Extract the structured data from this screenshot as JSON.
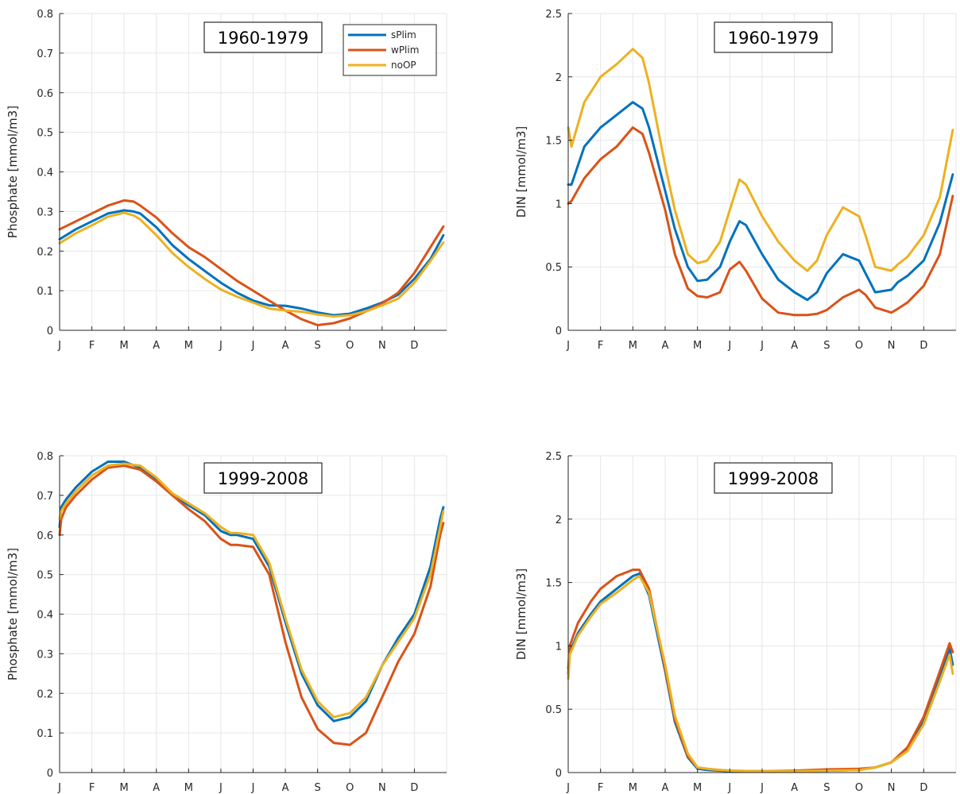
{
  "colors": {
    "sPlim": "#0072BD",
    "wPlim": "#D95319",
    "noOP": "#EDB120",
    "grid": "#e6e6e6",
    "axis": "#262626"
  },
  "legend": {
    "entries": [
      "sPlim",
      "wPlim",
      "noOP"
    ],
    "placement": "top-right of top-left panel"
  },
  "chart_data": [
    {
      "type": "line",
      "title": "1960-1979",
      "ylabel": "Phosphate [mmol/m3]",
      "ylim": [
        0,
        0.8
      ],
      "yticks": [
        "0",
        "0.1",
        "0.2",
        "0.3",
        "0.4",
        "0.5",
        "0.6",
        "0.7",
        "0.8"
      ],
      "xtick_labels": [
        "J",
        "F",
        "M",
        "A",
        "M",
        "J",
        "J",
        "A",
        "S",
        "O",
        "N",
        "D"
      ],
      "x_domain_months": [
        0,
        12
      ],
      "grid": true,
      "series": [
        {
          "name": "sPlim",
          "x": [
            0,
            0.5,
            1,
            1.5,
            2,
            2.3,
            2.5,
            3,
            3.5,
            4,
            4.5,
            5,
            5.5,
            6,
            6.5,
            7,
            7.5,
            8,
            8.5,
            9,
            9.5,
            10,
            10.5,
            11,
            11.5,
            11.9
          ],
          "values": [
            0.23,
            0.255,
            0.275,
            0.295,
            0.303,
            0.3,
            0.295,
            0.26,
            0.215,
            0.18,
            0.15,
            0.12,
            0.095,
            0.075,
            0.063,
            0.062,
            0.055,
            0.045,
            0.038,
            0.042,
            0.055,
            0.07,
            0.09,
            0.13,
            0.18,
            0.24
          ]
        },
        {
          "name": "wPlim",
          "x": [
            0,
            0.5,
            1,
            1.5,
            2,
            2.3,
            2.5,
            3,
            3.5,
            4,
            4.5,
            5,
            5.5,
            6,
            6.5,
            7,
            7.5,
            8,
            8.5,
            9,
            9.5,
            10,
            10.5,
            11,
            11.5,
            11.9
          ],
          "values": [
            0.255,
            0.275,
            0.295,
            0.315,
            0.328,
            0.325,
            0.315,
            0.285,
            0.245,
            0.21,
            0.185,
            0.155,
            0.125,
            0.1,
            0.075,
            0.05,
            0.028,
            0.013,
            0.018,
            0.03,
            0.048,
            0.068,
            0.095,
            0.145,
            0.21,
            0.262
          ]
        },
        {
          "name": "noOP",
          "x": [
            0,
            0.5,
            1,
            1.5,
            2,
            2.3,
            2.5,
            3,
            3.5,
            4,
            4.5,
            5,
            5.5,
            6,
            6.5,
            7,
            7.5,
            8,
            8.5,
            9,
            9.5,
            10,
            10.5,
            11,
            11.5,
            11.9
          ],
          "values": [
            0.22,
            0.245,
            0.265,
            0.287,
            0.297,
            0.29,
            0.28,
            0.24,
            0.195,
            0.16,
            0.13,
            0.103,
            0.085,
            0.07,
            0.055,
            0.05,
            0.047,
            0.04,
            0.035,
            0.038,
            0.048,
            0.063,
            0.08,
            0.12,
            0.175,
            0.222
          ]
        }
      ]
    },
    {
      "type": "line",
      "title": "1960-1979",
      "ylabel": "DIN [mmol/m3]",
      "ylim": [
        0,
        2.5
      ],
      "yticks": [
        "0",
        "0.5",
        "1",
        "1.5",
        "2",
        "2.5"
      ],
      "xtick_labels": [
        "J",
        "F",
        "M",
        "A",
        "M",
        "J",
        "J",
        "A",
        "S",
        "O",
        "N",
        "D"
      ],
      "x_domain_months": [
        0,
        12
      ],
      "grid": true,
      "series": [
        {
          "name": "sPlim",
          "x": [
            0,
            0.1,
            0.5,
            1,
            1.5,
            2,
            2.3,
            2.5,
            3,
            3.3,
            3.7,
            4,
            4.3,
            4.7,
            5,
            5.3,
            5.5,
            6,
            6.5,
            7,
            7.4,
            7.7,
            8,
            8.5,
            9,
            9.2,
            9.5,
            10,
            10.2,
            10.5,
            11,
            11.5,
            11.9
          ],
          "values": [
            1.15,
            1.15,
            1.45,
            1.6,
            1.7,
            1.8,
            1.75,
            1.6,
            1.1,
            0.8,
            0.5,
            0.39,
            0.4,
            0.5,
            0.7,
            0.86,
            0.83,
            0.6,
            0.4,
            0.3,
            0.24,
            0.3,
            0.45,
            0.6,
            0.55,
            0.45,
            0.3,
            0.32,
            0.38,
            0.43,
            0.55,
            0.85,
            1.23
          ]
        },
        {
          "name": "wPlim",
          "x": [
            0,
            0.1,
            0.5,
            1,
            1.5,
            2,
            2.3,
            2.5,
            3,
            3.3,
            3.7,
            4,
            4.3,
            4.7,
            5,
            5.3,
            5.5,
            6,
            6.5,
            7,
            7.4,
            7.7,
            8,
            8.5,
            9,
            9.2,
            9.5,
            10,
            10.2,
            10.5,
            11,
            11.5,
            11.9
          ],
          "values": [
            1.0,
            1.02,
            1.2,
            1.35,
            1.45,
            1.6,
            1.55,
            1.4,
            0.95,
            0.6,
            0.33,
            0.27,
            0.26,
            0.3,
            0.48,
            0.54,
            0.47,
            0.25,
            0.14,
            0.12,
            0.12,
            0.13,
            0.16,
            0.26,
            0.32,
            0.28,
            0.18,
            0.14,
            0.17,
            0.22,
            0.35,
            0.6,
            1.06
          ]
        },
        {
          "name": "noOP",
          "x": [
            0,
            0.1,
            0.5,
            1,
            1.5,
            2,
            2.3,
            2.5,
            3,
            3.3,
            3.7,
            4,
            4.3,
            4.7,
            5,
            5.3,
            5.5,
            6,
            6.5,
            7,
            7.4,
            7.7,
            8,
            8.5,
            9,
            9.2,
            9.5,
            10,
            10.2,
            10.5,
            11,
            11.5,
            11.9
          ],
          "values": [
            1.6,
            1.45,
            1.8,
            2.0,
            2.1,
            2.22,
            2.15,
            1.95,
            1.3,
            0.95,
            0.6,
            0.53,
            0.55,
            0.7,
            0.95,
            1.19,
            1.15,
            0.9,
            0.7,
            0.55,
            0.47,
            0.55,
            0.75,
            0.97,
            0.9,
            0.75,
            0.5,
            0.47,
            0.52,
            0.58,
            0.75,
            1.05,
            1.58
          ]
        }
      ]
    },
    {
      "type": "line",
      "title": "1999-2008",
      "ylabel": "Phosphate [mmol/m3]",
      "ylim": [
        0,
        0.8
      ],
      "yticks": [
        "0",
        "0.1",
        "0.2",
        "0.3",
        "0.4",
        "0.5",
        "0.6",
        "0.7",
        "0.8"
      ],
      "xtick_labels": [
        "J",
        "F",
        "M",
        "A",
        "M",
        "J",
        "J",
        "A",
        "S",
        "O",
        "N",
        "D"
      ],
      "x_domain_months": [
        0,
        12
      ],
      "grid": true,
      "series": [
        {
          "name": "sPlim",
          "x": [
            0,
            0.05,
            0.2,
            0.5,
            1,
            1.5,
            2,
            2.5,
            3,
            3.5,
            4,
            4.5,
            5,
            5.3,
            5.5,
            6,
            6.5,
            7,
            7.5,
            8,
            8.5,
            9,
            9.5,
            10,
            10.5,
            11,
            11.5,
            11.8,
            11.9
          ],
          "values": [
            0.62,
            0.67,
            0.69,
            0.72,
            0.76,
            0.785,
            0.785,
            0.77,
            0.74,
            0.7,
            0.675,
            0.65,
            0.61,
            0.6,
            0.6,
            0.59,
            0.52,
            0.38,
            0.25,
            0.17,
            0.13,
            0.14,
            0.18,
            0.27,
            0.34,
            0.4,
            0.52,
            0.64,
            0.67
          ]
        },
        {
          "name": "wPlim",
          "x": [
            0,
            0.05,
            0.2,
            0.5,
            1,
            1.5,
            2,
            2.5,
            3,
            3.5,
            4,
            4.5,
            5,
            5.3,
            5.5,
            6,
            6.5,
            7,
            7.5,
            8,
            8.5,
            9,
            9.5,
            10,
            10.5,
            11,
            11.5,
            11.8,
            11.9
          ],
          "values": [
            0.6,
            0.64,
            0.67,
            0.7,
            0.74,
            0.77,
            0.775,
            0.765,
            0.735,
            0.7,
            0.665,
            0.635,
            0.59,
            0.575,
            0.575,
            0.57,
            0.5,
            0.33,
            0.19,
            0.11,
            0.075,
            0.07,
            0.1,
            0.19,
            0.28,
            0.35,
            0.47,
            0.6,
            0.63
          ]
        },
        {
          "name": "noOP",
          "x": [
            0,
            0.05,
            0.2,
            0.5,
            1,
            1.5,
            2,
            2.5,
            3,
            3.5,
            4,
            4.5,
            5,
            5.3,
            5.5,
            6,
            6.5,
            7,
            7.5,
            8,
            8.5,
            9,
            9.5,
            10,
            10.5,
            11,
            11.5,
            11.8,
            11.9
          ],
          "values": [
            0.64,
            0.66,
            0.68,
            0.71,
            0.75,
            0.775,
            0.78,
            0.775,
            0.745,
            0.705,
            0.68,
            0.655,
            0.62,
            0.605,
            0.605,
            0.6,
            0.53,
            0.39,
            0.26,
            0.18,
            0.14,
            0.15,
            0.19,
            0.27,
            0.33,
            0.39,
            0.5,
            0.62,
            0.66
          ]
        }
      ]
    },
    {
      "type": "line",
      "title": "1999-2008",
      "ylabel": "DIN [mmol/m3]",
      "ylim": [
        0,
        2.5
      ],
      "yticks": [
        "0",
        "0.5",
        "1",
        "1.5",
        "2",
        "2.5"
      ],
      "xtick_labels": [
        "J",
        "F",
        "M",
        "A",
        "M",
        "J",
        "J",
        "A",
        "S",
        "O",
        "N",
        "D"
      ],
      "x_domain_months": [
        0,
        12
      ],
      "grid": true,
      "series": [
        {
          "name": "sPlim",
          "x": [
            0,
            0.05,
            0.3,
            0.7,
            1,
            1.5,
            2,
            2.2,
            2.5,
            3,
            3.3,
            3.7,
            4,
            4.3,
            4.7,
            5,
            6,
            7,
            8,
            9,
            9.5,
            10,
            10.5,
            11,
            11.5,
            11.8,
            11.9
          ],
          "values": [
            0.78,
            0.95,
            1.1,
            1.25,
            1.35,
            1.45,
            1.55,
            1.57,
            1.4,
            0.8,
            0.4,
            0.12,
            0.03,
            0.02,
            0.015,
            0.01,
            0.01,
            0.01,
            0.015,
            0.02,
            0.04,
            0.08,
            0.18,
            0.4,
            0.75,
            0.98,
            0.85
          ]
        },
        {
          "name": "wPlim",
          "x": [
            0,
            0.05,
            0.3,
            0.7,
            1,
            1.5,
            2,
            2.2,
            2.5,
            3,
            3.3,
            3.7,
            4,
            4.3,
            4.7,
            5,
            6,
            7,
            8,
            9,
            9.5,
            10,
            10.5,
            11,
            11.5,
            11.8,
            11.9
          ],
          "values": [
            0.82,
            1.0,
            1.18,
            1.35,
            1.45,
            1.55,
            1.6,
            1.6,
            1.45,
            0.82,
            0.42,
            0.13,
            0.04,
            0.03,
            0.02,
            0.015,
            0.01,
            0.015,
            0.025,
            0.03,
            0.04,
            0.08,
            0.2,
            0.44,
            0.8,
            1.02,
            0.95
          ]
        },
        {
          "name": "noOP",
          "x": [
            0,
            0.05,
            0.3,
            0.7,
            1,
            1.5,
            2,
            2.2,
            2.5,
            3,
            3.3,
            3.7,
            4,
            4.3,
            4.7,
            5,
            6,
            7,
            8,
            9,
            9.5,
            10,
            10.5,
            11,
            11.5,
            11.8,
            11.9
          ],
          "values": [
            0.74,
            0.93,
            1.08,
            1.23,
            1.33,
            1.42,
            1.52,
            1.55,
            1.42,
            0.85,
            0.45,
            0.15,
            0.04,
            0.03,
            0.02,
            0.015,
            0.01,
            0.01,
            0.015,
            0.02,
            0.04,
            0.08,
            0.17,
            0.38,
            0.72,
            0.93,
            0.78
          ]
        }
      ]
    }
  ]
}
